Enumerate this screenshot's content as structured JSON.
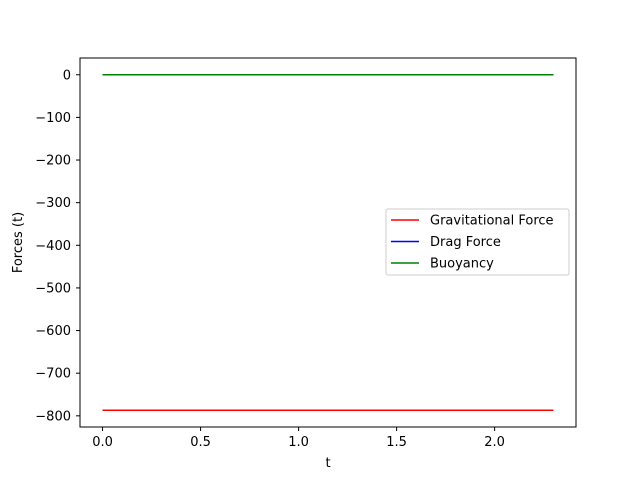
{
  "chart_data": {
    "type": "line",
    "title": "",
    "xlabel": "t",
    "ylabel": "Forces (t)",
    "xlim": [
      -0.115,
      2.415
    ],
    "ylim": [
      -826.2,
      39.3
    ],
    "xticks": [
      0.0,
      0.5,
      1.0,
      1.5,
      2.0
    ],
    "xtick_labels": [
      "0.0",
      "0.5",
      "1.0",
      "1.5",
      "2.0"
    ],
    "yticks": [
      0,
      -100,
      -200,
      -300,
      -400,
      -500,
      -600,
      -700,
      -800
    ],
    "ytick_labels": [
      "0",
      "−100",
      "−200",
      "−300",
      "−400",
      "−500",
      "−600",
      "−700",
      "−800"
    ],
    "grid": false,
    "legend_position": "center-right",
    "series": [
      {
        "name": "Gravitational Force",
        "color": "#ff0000",
        "x": [
          0.0,
          2.3
        ],
        "y": [
          -786.9,
          -786.9
        ]
      },
      {
        "name": "Drag Force",
        "color": "#0000ff",
        "x": [
          0.0,
          2.3
        ],
        "y": [
          0.0,
          0.0
        ]
      },
      {
        "name": "Buoyancy",
        "color": "#008000",
        "x": [
          0.0,
          2.3
        ],
        "y": [
          0.0,
          0.0
        ]
      }
    ]
  }
}
